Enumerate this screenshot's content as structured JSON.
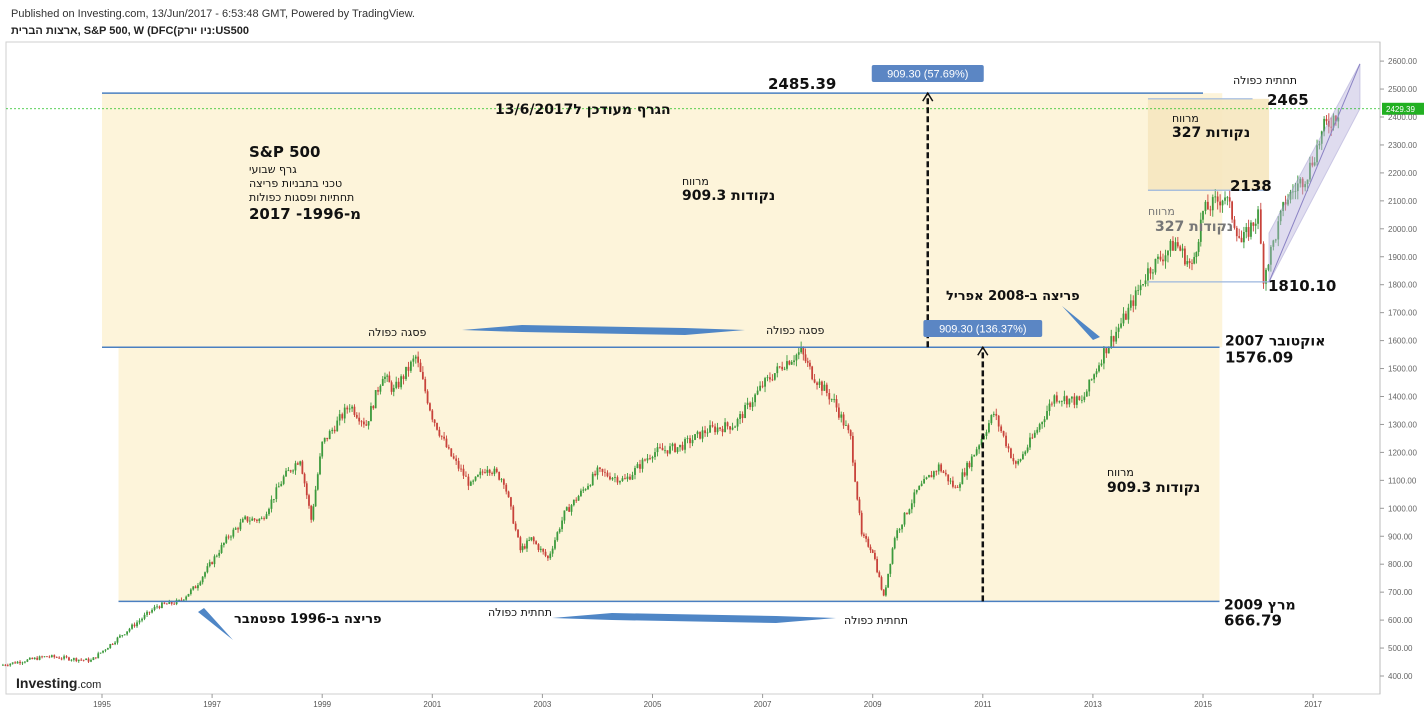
{
  "header": {
    "published": "Published on Investing.com, 13/Jun/2017 - 6:53:48 GMT, Powered by TradingView.",
    "symbol": "ארצות הברית, S&P 500, W (DFC(ניו יורק:US500"
  },
  "brand": {
    "logo": "Investing",
    "suffix": ".com"
  },
  "chart_data": {
    "type": "candlestick",
    "x_ticks": [
      "1995",
      "1997",
      "1999",
      "2001",
      "2003",
      "2005",
      "2007",
      "2009",
      "2011",
      "2013",
      "2015",
      "2017"
    ],
    "y_ticks": [
      400,
      500,
      600,
      700,
      800,
      900,
      1000,
      1100,
      1200,
      1300,
      1400,
      1500,
      1600,
      1700,
      1800,
      1900,
      2000,
      2100,
      2200,
      2300,
      2400,
      2500,
      2600
    ],
    "ylim": [
      350,
      2630
    ],
    "last_price": "2429.39",
    "colors": {
      "up": "#3c9a3c",
      "down": "#c8423a",
      "level": "#4a7fc1",
      "zone": "#fdf3d6",
      "channel": "#b9b2dc",
      "price_line": "#22c022"
    },
    "path_points": [
      [
        1993.2,
        440
      ],
      [
        1994.0,
        470
      ],
      [
        1994.8,
        455
      ],
      [
        1995.5,
        570
      ],
      [
        1996.0,
        650
      ],
      [
        1996.4,
        666
      ],
      [
        1996.7,
        720
      ],
      [
        1997.3,
        900
      ],
      [
        1997.6,
        960
      ],
      [
        1997.9,
        960
      ],
      [
        1998.3,
        1110
      ],
      [
        1998.6,
        1180
      ],
      [
        1998.8,
        960
      ],
      [
        1999.0,
        1230
      ],
      [
        1999.5,
        1370
      ],
      [
        1999.8,
        1300
      ],
      [
        2000.1,
        1480
      ],
      [
        2000.3,
        1420
      ],
      [
        2000.7,
        1540
      ],
      [
        2001.0,
        1330
      ],
      [
        2001.3,
        1200
      ],
      [
        2001.7,
        1080
      ],
      [
        2002.0,
        1150
      ],
      [
        2002.3,
        1100
      ],
      [
        2002.6,
        850
      ],
      [
        2002.8,
        890
      ],
      [
        2003.1,
        820
      ],
      [
        2003.4,
        980
      ],
      [
        2004.0,
        1130
      ],
      [
        2004.5,
        1100
      ],
      [
        2005.0,
        1200
      ],
      [
        2005.5,
        1220
      ],
      [
        2006.0,
        1280
      ],
      [
        2006.5,
        1300
      ],
      [
        2007.0,
        1440
      ],
      [
        2007.4,
        1520
      ],
      [
        2007.7,
        1560
      ],
      [
        2007.9,
        1480
      ],
      [
        2008.3,
        1380
      ],
      [
        2008.6,
        1250
      ],
      [
        2008.8,
        900
      ],
      [
        2009.0,
        850
      ],
      [
        2009.2,
        680
      ],
      [
        2009.4,
        900
      ],
      [
        2009.8,
        1060
      ],
      [
        2010.2,
        1150
      ],
      [
        2010.5,
        1070
      ],
      [
        2010.8,
        1180
      ],
      [
        2011.2,
        1340
      ],
      [
        2011.6,
        1150
      ],
      [
        2011.9,
        1250
      ],
      [
        2012.3,
        1400
      ],
      [
        2012.8,
        1380
      ],
      [
        2013.2,
        1560
      ],
      [
        2013.6,
        1690
      ],
      [
        2014.0,
        1850
      ],
      [
        2014.5,
        1950
      ],
      [
        2014.8,
        1860
      ],
      [
        2015.0,
        2060
      ],
      [
        2015.4,
        2120
      ],
      [
        2015.7,
        1950
      ],
      [
        2016.0,
        2050
      ],
      [
        2016.1,
        1830
      ],
      [
        2016.5,
        2100
      ],
      [
        2016.9,
        2200
      ],
      [
        2017.2,
        2360
      ],
      [
        2017.5,
        2430
      ]
    ],
    "levels": [
      {
        "price": 2485.39,
        "label": "2485.39",
        "x_from": 1995.0,
        "x_to": 2015.0
      },
      {
        "price": 1576.09,
        "label_top": "2007 אוקטובר",
        "label_bottom": "1576.09",
        "x_from": 1995.0,
        "x_to": 2015.3
      },
      {
        "price": 666.79,
        "label_top": "2009 מרץ",
        "label_bottom": "666.79",
        "x_from": 1995.3,
        "x_to": 2015.3
      },
      {
        "price": 2465,
        "label": "2465"
      },
      {
        "price": 2138,
        "label": "2138"
      },
      {
        "price": 1810.1,
        "label": "1810.10"
      }
    ],
    "measurements": [
      {
        "label": "909.30 (57.69%)",
        "x": 2010.0
      },
      {
        "label": "909.30 (136.37%)",
        "x": 2011.0
      }
    ],
    "annotations": {
      "title": "S&P 500",
      "subtitle_lines": [
        "גרף שבועי",
        "טכני בתבניות פריצה",
        "תחתיות ופסגות כפולות",
        "2017 -1996-מ"
      ],
      "updated": "הגרף מעודכן ל13/6/2017",
      "gain_top_a": "מרווח",
      "gain_top_b": "909.3 נקודות",
      "gain_bottom_a": "מרווח",
      "gain_bottom_b": "909.3 נקודות",
      "double_top_left": "פסגה כפולה",
      "double_top_right": "פסגה כפולה",
      "double_bottom_left": "תחתית כפולה",
      "double_bottom_right": "תחתית כפולה",
      "double_bottom_top_right": "תחתית כפולה",
      "breakout_2008": "פריצה ב-2008 אפריל",
      "breakout_1996": "פריצה ב-1996 ספטמבר",
      "gain_small_top_a": "מרווח",
      "gain_small_top_b": "327 נקודות",
      "gain_small_mid_a": "מרווח",
      "gain_small_mid_b": "327 נקודות"
    }
  }
}
